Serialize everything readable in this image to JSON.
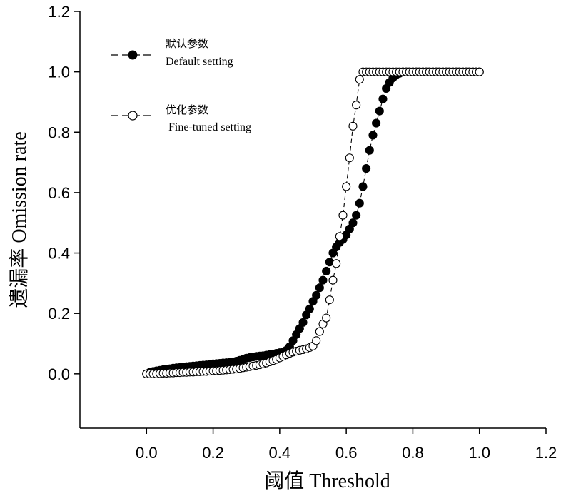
{
  "chart_data": {
    "type": "scatter",
    "title": "",
    "xlabel": "阈值 Threshold",
    "ylabel": "遗漏率 Omission rate",
    "xlim": [
      -0.2,
      1.2
    ],
    "ylim": [
      -0.18,
      1.2
    ],
    "xticks": [
      "0.0",
      "0.2",
      "0.4",
      "0.6",
      "0.8",
      "1.0",
      "1.2"
    ],
    "yticks": [
      "0.0",
      "0.2",
      "0.4",
      "0.6",
      "0.8",
      "1.0",
      "1.2"
    ],
    "xtick_values": [
      0.0,
      0.2,
      0.4,
      0.6,
      0.8,
      1.0,
      1.2
    ],
    "ytick_values": [
      0.0,
      0.2,
      0.4,
      0.6,
      0.8,
      1.0,
      1.2
    ],
    "grid": false,
    "legend_position": "top-left",
    "series": [
      {
        "name_zh": "默认参数",
        "name": "Default setting",
        "marker": "filled-circle",
        "line": "dashed",
        "color": "#000000",
        "x": [
          0.0,
          0.01,
          0.02,
          0.03,
          0.04,
          0.05,
          0.06,
          0.07,
          0.08,
          0.09,
          0.1,
          0.11,
          0.12,
          0.13,
          0.14,
          0.15,
          0.16,
          0.17,
          0.18,
          0.19,
          0.2,
          0.21,
          0.22,
          0.23,
          0.24,
          0.25,
          0.26,
          0.27,
          0.28,
          0.29,
          0.3,
          0.31,
          0.32,
          0.33,
          0.34,
          0.35,
          0.36,
          0.37,
          0.38,
          0.39,
          0.4,
          0.41,
          0.42,
          0.43,
          0.44,
          0.45,
          0.46,
          0.47,
          0.48,
          0.49,
          0.5,
          0.51,
          0.52,
          0.53,
          0.54,
          0.55,
          0.56,
          0.57,
          0.58,
          0.59,
          0.6,
          0.61,
          0.62,
          0.63,
          0.64,
          0.65,
          0.66,
          0.67,
          0.68,
          0.69,
          0.7,
          0.71,
          0.72,
          0.73,
          0.74,
          0.75,
          0.76,
          0.77,
          0.78,
          0.79,
          0.8,
          0.81,
          0.82,
          0.83,
          0.84,
          0.85,
          0.86,
          0.87,
          0.88,
          0.89,
          0.9,
          0.91,
          0.92,
          0.93,
          0.94,
          0.95,
          0.96,
          0.97,
          0.98,
          0.99,
          1.0
        ],
        "y": [
          0.0,
          0.005,
          0.008,
          0.01,
          0.012,
          0.014,
          0.016,
          0.017,
          0.019,
          0.02,
          0.021,
          0.022,
          0.024,
          0.025,
          0.026,
          0.027,
          0.028,
          0.029,
          0.03,
          0.031,
          0.033,
          0.034,
          0.035,
          0.036,
          0.037,
          0.038,
          0.04,
          0.042,
          0.045,
          0.048,
          0.052,
          0.054,
          0.056,
          0.058,
          0.059,
          0.06,
          0.062,
          0.064,
          0.066,
          0.068,
          0.07,
          0.072,
          0.078,
          0.09,
          0.11,
          0.13,
          0.15,
          0.17,
          0.195,
          0.215,
          0.24,
          0.26,
          0.285,
          0.31,
          0.34,
          0.37,
          0.4,
          0.42,
          0.435,
          0.445,
          0.46,
          0.48,
          0.5,
          0.525,
          0.565,
          0.62,
          0.68,
          0.74,
          0.79,
          0.83,
          0.87,
          0.91,
          0.945,
          0.965,
          0.98,
          0.99,
          0.995,
          1.0,
          1.0,
          1.0,
          1.0,
          1.0,
          1.0,
          1.0,
          1.0,
          1.0,
          1.0,
          1.0,
          1.0,
          1.0,
          1.0,
          1.0,
          1.0,
          1.0,
          1.0,
          1.0,
          1.0,
          1.0,
          1.0,
          1.0,
          1.0
        ]
      },
      {
        "name_zh": "优化参数",
        "name": "Fine-tuned setting",
        "marker": "open-circle",
        "line": "dashed",
        "color": "#000000",
        "x": [
          0.0,
          0.01,
          0.02,
          0.03,
          0.04,
          0.05,
          0.06,
          0.07,
          0.08,
          0.09,
          0.1,
          0.11,
          0.12,
          0.13,
          0.14,
          0.15,
          0.16,
          0.17,
          0.18,
          0.19,
          0.2,
          0.21,
          0.22,
          0.23,
          0.24,
          0.25,
          0.26,
          0.27,
          0.28,
          0.29,
          0.3,
          0.31,
          0.32,
          0.33,
          0.34,
          0.35,
          0.36,
          0.37,
          0.38,
          0.39,
          0.4,
          0.41,
          0.42,
          0.43,
          0.44,
          0.45,
          0.46,
          0.47,
          0.48,
          0.49,
          0.5,
          0.51,
          0.52,
          0.53,
          0.54,
          0.55,
          0.56,
          0.57,
          0.58,
          0.59,
          0.6,
          0.61,
          0.62,
          0.63,
          0.64,
          0.65,
          0.66,
          0.67,
          0.68,
          0.69,
          0.7,
          0.71,
          0.72,
          0.73,
          0.74,
          0.75,
          0.76,
          0.77,
          0.78,
          0.79,
          0.8,
          0.81,
          0.82,
          0.83,
          0.84,
          0.85,
          0.86,
          0.87,
          0.88,
          0.89,
          0.9,
          0.91,
          0.92,
          0.93,
          0.94,
          0.95,
          0.96,
          0.97,
          0.98,
          0.99,
          1.0
        ],
        "y": [
          0.0,
          0.0,
          0.0,
          0.0,
          0.001,
          0.002,
          0.002,
          0.003,
          0.003,
          0.004,
          0.004,
          0.005,
          0.005,
          0.006,
          0.006,
          0.007,
          0.007,
          0.008,
          0.008,
          0.009,
          0.01,
          0.01,
          0.011,
          0.012,
          0.013,
          0.014,
          0.015,
          0.016,
          0.018,
          0.02,
          0.022,
          0.024,
          0.026,
          0.028,
          0.03,
          0.033,
          0.036,
          0.04,
          0.044,
          0.048,
          0.053,
          0.058,
          0.063,
          0.068,
          0.072,
          0.075,
          0.078,
          0.08,
          0.083,
          0.087,
          0.092,
          0.11,
          0.14,
          0.165,
          0.185,
          0.245,
          0.31,
          0.365,
          0.455,
          0.525,
          0.62,
          0.715,
          0.82,
          0.89,
          0.975,
          1.0,
          1.0,
          1.0,
          1.0,
          1.0,
          1.0,
          1.0,
          1.0,
          1.0,
          1.0,
          1.0,
          1.0,
          1.0,
          1.0,
          1.0,
          1.0,
          1.0,
          1.0,
          1.0,
          1.0,
          1.0,
          1.0,
          1.0,
          1.0,
          1.0,
          1.0,
          1.0,
          1.0,
          1.0,
          1.0,
          1.0,
          1.0,
          1.0,
          1.0,
          1.0,
          1.0
        ]
      }
    ]
  }
}
